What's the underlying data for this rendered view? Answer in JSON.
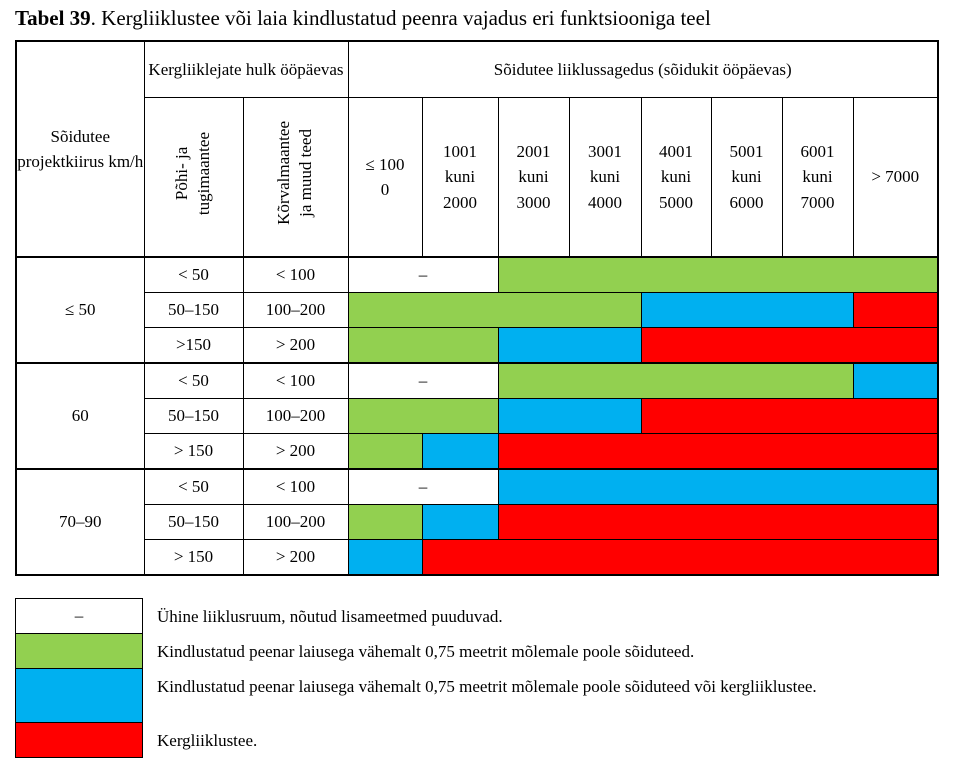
{
  "title": {
    "label": "Tabel 39",
    "text": ". Kergliiklustee või laia kindlustatud peenra vajadus eri funktsiooniga teel"
  },
  "table": {
    "header": {
      "speed": "Sõidutee projektkiirus km/h",
      "volume_group": "Kergliiklejate hulk ööpäevas",
      "volume_cols": [
        "Põhi- ja\ntugimaantee",
        "Kõrvalmaantee\nja muud teed"
      ],
      "traffic_group": "Sõidutee liiklussagedus (sõidukit ööpäevas)",
      "traffic_cols": [
        "≤ 100\n0",
        "1001\nkuni\n2000",
        "2001\nkuni\n3000",
        "3001\nkuni\n4000",
        "4001\nkuni\n5000",
        "5001\nkuni\n6000",
        "6001\nkuni\n7000",
        "> 7000"
      ]
    },
    "groups": [
      {
        "speed": "≤ 50",
        "rows": [
          {
            "main": "< 50",
            "other": "< 100",
            "cells": [
              "#ffffff",
              "#ffffff",
              "#92d050",
              "#92d050",
              "#92d050",
              "#92d050",
              "#92d050",
              "#92d050"
            ]
          },
          {
            "main": "50–150",
            "other": "100–200",
            "cells": [
              "#92d050",
              "#92d050",
              "#92d050",
              "#92d050",
              "#00b0f0",
              "#00b0f0",
              "#00b0f0",
              "#ff0000"
            ]
          },
          {
            "main": ">150",
            "other": "> 200",
            "cells": [
              "#92d050",
              "#92d050",
              "#00b0f0",
              "#00b0f0",
              "#ff0000",
              "#ff0000",
              "#ff0000",
              "#ff0000"
            ]
          }
        ]
      },
      {
        "speed": "60",
        "rows": [
          {
            "main": "< 50",
            "other": "< 100",
            "cells": [
              "#ffffff",
              "#ffffff",
              "#92d050",
              "#92d050",
              "#92d050",
              "#92d050",
              "#92d050",
              "#00b0f0"
            ]
          },
          {
            "main": "50–150",
            "other": "100–200",
            "cells": [
              "#92d050",
              "#92d050",
              "#00b0f0",
              "#00b0f0",
              "#ff0000",
              "#ff0000",
              "#ff0000",
              "#ff0000"
            ]
          },
          {
            "main": "> 150",
            "other": "> 200",
            "cells": [
              "#92d050",
              "#00b0f0",
              "#ff0000",
              "#ff0000",
              "#ff0000",
              "#ff0000",
              "#ff0000",
              "#ff0000"
            ]
          }
        ]
      },
      {
        "speed": "70–90",
        "rows": [
          {
            "main": "< 50",
            "other": "< 100",
            "cells": [
              "#ffffff",
              "#ffffff",
              "#00b0f0",
              "#00b0f0",
              "#00b0f0",
              "#00b0f0",
              "#00b0f0",
              "#00b0f0"
            ]
          },
          {
            "main": "50–150",
            "other": "100–200",
            "cells": [
              "#92d050",
              "#00b0f0",
              "#ff0000",
              "#ff0000",
              "#ff0000",
              "#ff0000",
              "#ff0000",
              "#ff0000"
            ]
          },
          {
            "main": "> 150",
            "other": "> 200",
            "cells": [
              "#00b0f0",
              "#ff0000",
              "#ff0000",
              "#ff0000",
              "#ff0000",
              "#ff0000",
              "#ff0000",
              "#ff0000"
            ]
          }
        ]
      }
    ]
  },
  "legend": [
    {
      "color": "#ffffff",
      "symbol": "–",
      "text": "Ühine liiklusruum, nõutud lisameetmed puuduvad."
    },
    {
      "color": "#92d050",
      "text": "Kindlustatud peenar laiusega vähemalt 0,75 meetrit mõlemale poole sõiduteed."
    },
    {
      "color": "#00b0f0",
      "text": "Kindlustatud peenar laiusega vähemalt 0,75 meetrit mõlemale poole sõiduteed või kergliiklustee."
    },
    {
      "color": "#ff0000",
      "text": "Kergliiklustee."
    }
  ]
}
